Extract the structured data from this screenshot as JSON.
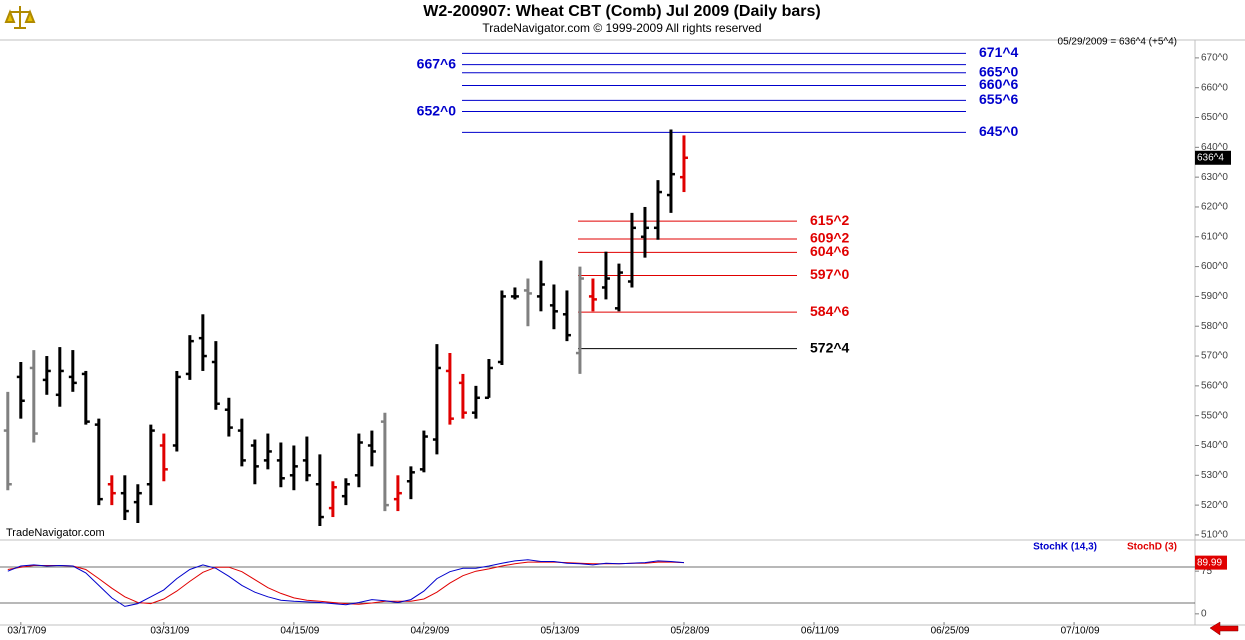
{
  "header": {
    "title": "W2-200907:  Wheat CBT (Comb) Jul 2009  (Daily bars)",
    "subtitle": "TradeNavigator.com © 1999-2009 All rights reserved",
    "status": "05/29/2009 = 636^4 (+5^4)",
    "watermark": "TradeNavigator.com"
  },
  "chart_data": [
    {
      "type": "ohlc",
      "x": [
        0,
        1,
        2,
        3,
        4,
        5,
        6,
        7,
        8,
        9,
        10,
        11,
        12,
        13,
        14,
        15,
        16,
        17,
        18,
        19,
        20,
        21,
        22,
        23,
        24,
        25,
        26,
        27,
        28,
        29,
        30,
        31,
        32,
        33,
        34,
        35,
        36,
        37,
        38,
        39,
        40,
        41,
        42,
        43,
        44,
        45,
        46,
        47,
        48,
        49,
        50,
        51,
        52
      ],
      "open": [
        545,
        563,
        566,
        562,
        557,
        563,
        564,
        547,
        527,
        524,
        521,
        527,
        540,
        540,
        564,
        576,
        568,
        552,
        545,
        540,
        535,
        535,
        530,
        535,
        527,
        519,
        523,
        530,
        540,
        548,
        522,
        528,
        532,
        542,
        565,
        561,
        551,
        556,
        568,
        590,
        592,
        590,
        587,
        584,
        571,
        590,
        593,
        586,
        595,
        610,
        613,
        624,
        630
      ],
      "high": [
        558,
        568,
        572,
        570,
        573,
        572,
        565,
        549,
        530,
        530,
        527,
        547,
        544,
        565,
        577,
        584,
        575,
        556,
        549,
        542,
        544,
        541,
        540,
        543,
        537,
        528,
        529,
        544,
        545,
        551,
        530,
        533,
        545,
        574,
        571,
        564,
        560,
        569,
        592,
        593,
        596,
        602,
        594,
        592,
        600,
        596,
        605,
        601,
        618,
        620,
        629,
        646,
        644
      ],
      "low": [
        525,
        549,
        541,
        557,
        553,
        558,
        547,
        520,
        520,
        515,
        514,
        520,
        528,
        538,
        562,
        565,
        552,
        543,
        533,
        527,
        532,
        526,
        525,
        528,
        513,
        516,
        520,
        526,
        533,
        518,
        518,
        522,
        531,
        537,
        547,
        549,
        549,
        556,
        567,
        589,
        580,
        585,
        579,
        575,
        564,
        585,
        589,
        585,
        593,
        603,
        609,
        618,
        625
      ],
      "close": [
        527,
        555,
        544,
        565,
        565,
        561,
        548,
        522,
        524,
        518,
        524,
        545,
        532,
        563,
        575,
        570,
        554,
        546,
        535,
        533,
        538,
        529,
        533,
        530,
        516,
        526,
        527,
        541,
        538,
        520,
        524,
        531,
        543,
        566,
        549,
        551,
        556,
        566,
        590,
        590,
        591,
        594,
        585,
        577,
        596,
        589,
        596,
        598,
        613,
        613,
        625,
        631,
        636.5
      ],
      "colors": [
        "#808080",
        "#000000",
        "#808080",
        "#000000",
        "#000000",
        "#000000",
        "#000000",
        "#000000",
        "#e00000",
        "#000000",
        "#000000",
        "#000000",
        "#e00000",
        "#000000",
        "#000000",
        "#000000",
        "#000000",
        "#000000",
        "#000000",
        "#000000",
        "#000000",
        "#000000",
        "#000000",
        "#000000",
        "#000000",
        "#e00000",
        "#000000",
        "#000000",
        "#000000",
        "#808080",
        "#e00000",
        "#000000",
        "#000000",
        "#000000",
        "#e00000",
        "#e00000",
        "#000000",
        "#000000",
        "#000000",
        "#000000",
        "#808080",
        "#000000",
        "#000000",
        "#000000",
        "#808080",
        "#e00000",
        "#000000",
        "#000000",
        "#000000",
        "#000000",
        "#000000",
        "#000000",
        "#e00000"
      ],
      "xlim": [
        -0.6,
        91.3
      ],
      "xticks": [
        {
          "value": 1,
          "label": "03/17/09"
        },
        {
          "value": 12,
          "label": "03/31/09"
        },
        {
          "value": 22,
          "label": "04/15/09"
        },
        {
          "value": 32,
          "label": "04/29/09"
        },
        {
          "value": 42,
          "label": "05/13/09"
        },
        {
          "value": 52,
          "label": "05/28/09"
        },
        {
          "value": 62,
          "label": "06/11/09"
        },
        {
          "value": 72,
          "label": "06/25/09"
        },
        {
          "value": 82,
          "label": "07/10/09"
        }
      ],
      "ylim": [
        508.3,
        676
      ],
      "yticks": [
        {
          "value": 510,
          "label": "510^0"
        },
        {
          "value": 520,
          "label": "520^0"
        },
        {
          "value": 530,
          "label": "530^0"
        },
        {
          "value": 540,
          "label": "540^0"
        },
        {
          "value": 550,
          "label": "550^0"
        },
        {
          "value": 560,
          "label": "560^0"
        },
        {
          "value": 570,
          "label": "570^0"
        },
        {
          "value": 580,
          "label": "580^0"
        },
        {
          "value": 590,
          "label": "590^0"
        },
        {
          "value": 600,
          "label": "600^0"
        },
        {
          "value": 610,
          "label": "610^0"
        },
        {
          "value": 620,
          "label": "620^0"
        },
        {
          "value": 630,
          "label": "630^0"
        },
        {
          "value": 640,
          "label": "640^0"
        },
        {
          "value": 650,
          "label": "650^0"
        },
        {
          "value": 660,
          "label": "660^0"
        },
        {
          "value": 670,
          "label": "670^0"
        }
      ],
      "last": {
        "value": 636.5,
        "label": "636^4"
      },
      "levels": [
        {
          "value": 671.5,
          "label": "671^4",
          "color": "#0000cc"
        },
        {
          "value": 667.75,
          "label": "667^6",
          "color": "#0000cc",
          "label_side": "left"
        },
        {
          "value": 665,
          "label": "665^0",
          "color": "#0000cc"
        },
        {
          "value": 660.75,
          "label": "660^6",
          "color": "#0000cc"
        },
        {
          "value": 655.75,
          "label": "655^6",
          "color": "#0000cc"
        },
        {
          "value": 652,
          "label": "652^0",
          "color": "#0000cc",
          "label_side": "left"
        },
        {
          "value": 645,
          "label": "645^0",
          "color": "#0000cc"
        },
        {
          "value": 615.25,
          "label": "615^2",
          "color": "#e00000"
        },
        {
          "value": 609.25,
          "label": "609^2",
          "color": "#e00000"
        },
        {
          "value": 604.75,
          "label": "604^6",
          "color": "#e00000"
        },
        {
          "value": 597,
          "label": "597^0",
          "color": "#e00000"
        },
        {
          "value": 584.75,
          "label": "584^6",
          "color": "#e00000"
        },
        {
          "value": 572.5,
          "label": "572^4",
          "color": "#000000"
        }
      ]
    },
    {
      "type": "line",
      "series": [
        {
          "name": "StochD (3)",
          "color": "#e00000",
          "values": [
            78,
            82,
            85,
            85,
            85,
            84,
            78,
            62,
            45,
            30,
            20,
            18,
            26,
            40,
            57,
            73,
            82,
            82,
            74,
            60,
            46,
            36,
            28,
            24,
            22,
            20,
            18,
            17,
            19,
            22,
            22,
            22,
            26,
            38,
            54,
            67,
            75,
            79,
            84,
            88,
            91,
            91,
            91,
            90,
            89,
            88,
            88,
            88,
            89,
            89,
            91,
            91,
            90
          ]
        },
        {
          "name": "StochK (14,3)",
          "color": "#0000cc",
          "values": [
            75,
            84,
            86,
            84,
            85,
            84,
            72,
            50,
            28,
            13,
            18,
            30,
            42,
            62,
            78,
            86,
            80,
            66,
            50,
            38,
            30,
            24,
            22,
            21,
            20,
            18,
            16,
            20,
            25,
            23,
            20,
            25,
            40,
            62,
            74,
            80,
            80,
            84,
            89,
            93,
            95,
            92,
            92,
            89,
            88,
            86,
            89,
            88,
            89,
            90,
            93,
            92,
            89.99
          ]
        }
      ],
      "ylim": [
        -19.6,
        128
      ],
      "yticks": [
        0,
        75
      ]
    }
  ]
}
